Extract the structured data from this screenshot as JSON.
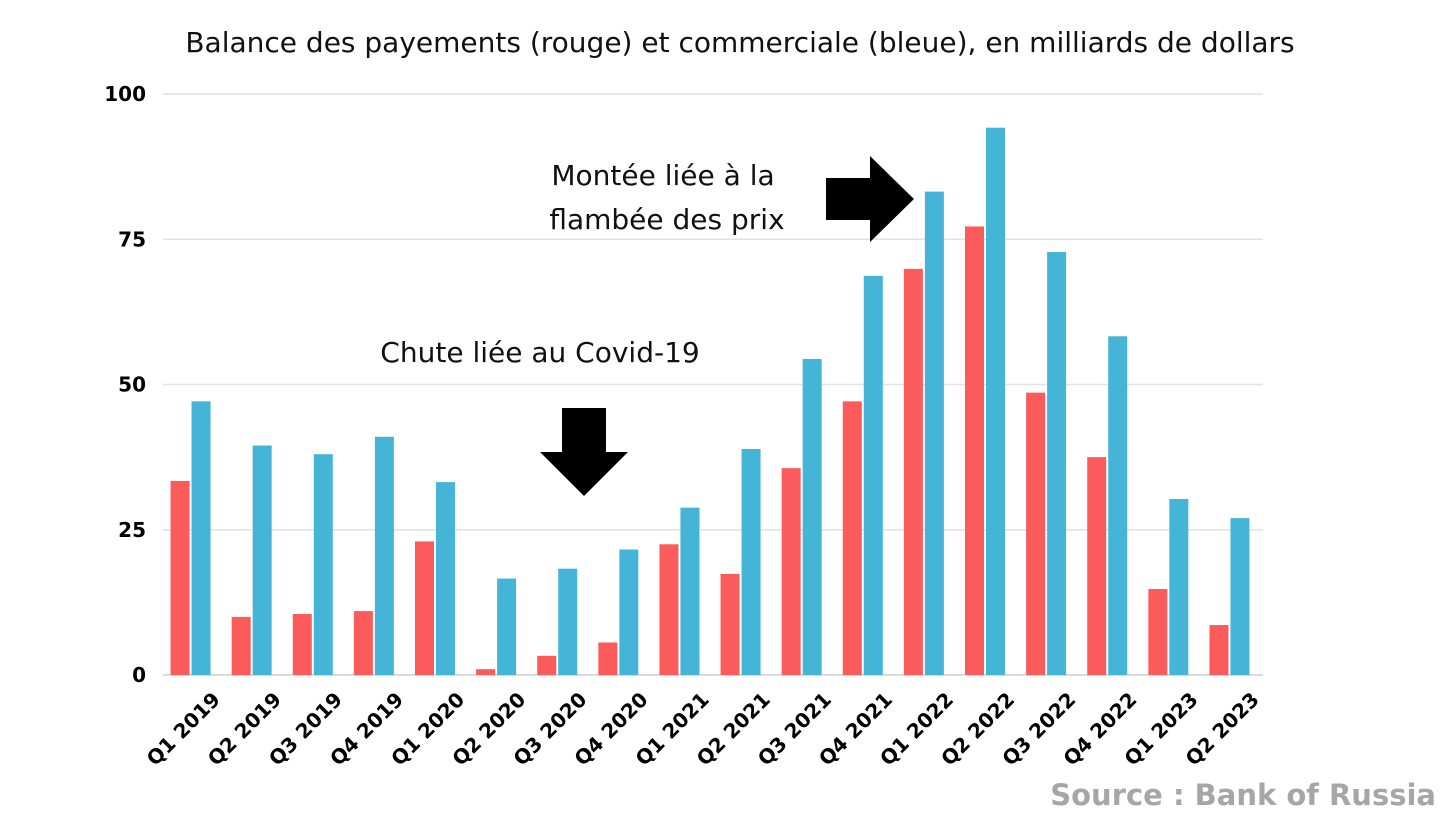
{
  "chart_data": {
    "type": "bar",
    "title": "Balance des payements (rouge) et commerciale (bleue), en milliards de dollars",
    "xlabel": "",
    "ylabel": "",
    "ylim": [
      0,
      100
    ],
    "yticks": [
      "0",
      "25",
      "50",
      "75",
      "100"
    ],
    "grid": true,
    "categories": [
      "Q1 2019",
      "Q2 2019",
      "Q3 2019",
      "Q4 2019",
      "Q1 2020",
      "Q2 2020",
      "Q3 2020",
      "Q4 2020",
      "Q1 2021",
      "Q2 2021",
      "Q3 2021",
      "Q4 2021",
      "Q1 2022",
      "Q2 2022",
      "Q3 2022",
      "Q4 2022",
      "Q1 2023",
      "Q2 2023"
    ],
    "series": [
      {
        "color": "#fc5b5b",
        "values": [
          33.4,
          10,
          10.5,
          11,
          23,
          1,
          3.3,
          5.6,
          22.5,
          17.4,
          35.6,
          47.1,
          69.9,
          77.2,
          48.6,
          37.5,
          14.8,
          8.6
        ]
      },
      {
        "color": "#44b5d6",
        "values": [
          47.1,
          39.5,
          38,
          41,
          33.2,
          16.6,
          18.3,
          21.6,
          28.8,
          38.9,
          54.4,
          68.7,
          83.2,
          94.2,
          72.8,
          58.3,
          30.3,
          27
        ]
      }
    ],
    "annotations": [
      {
        "lines": [
          "Montée liée à la",
          "flambée des prix"
        ],
        "arrow": "right"
      },
      {
        "lines": [
          "Chute liée au Covid-19"
        ],
        "arrow": "down"
      }
    ]
  },
  "source": "Source : Bank of Russia"
}
